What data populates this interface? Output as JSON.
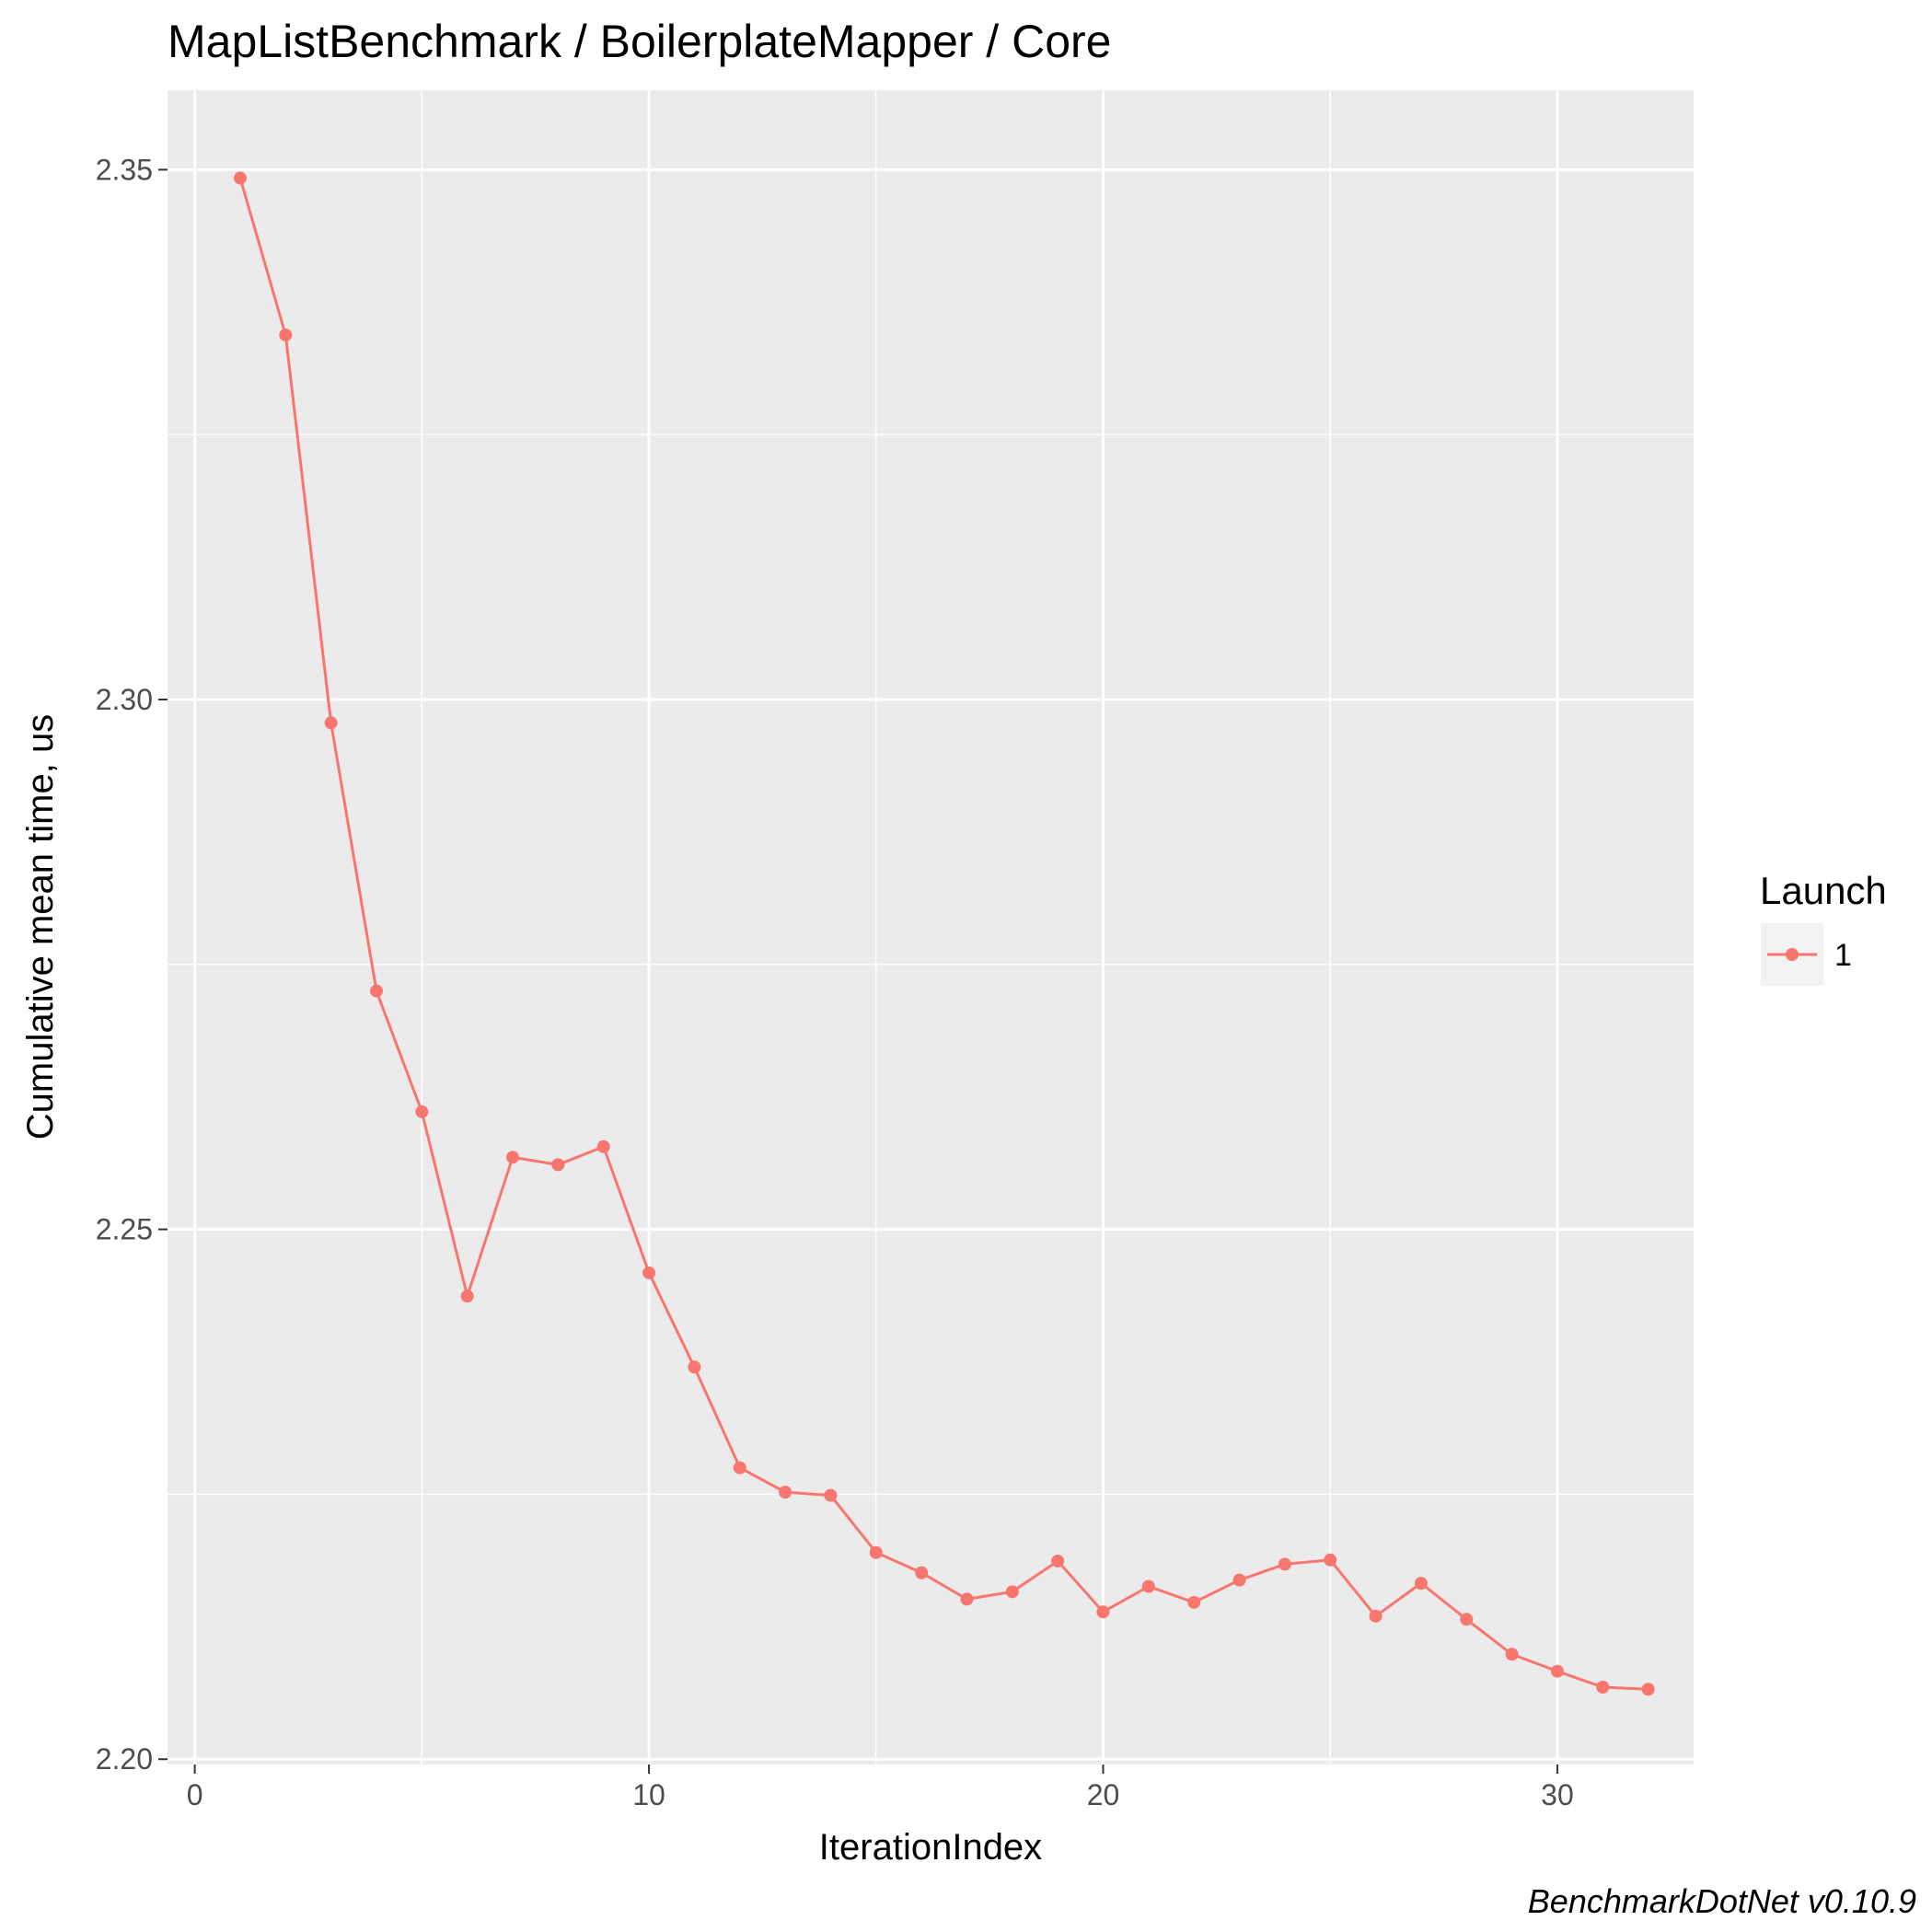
{
  "chart_data": {
    "type": "line",
    "title": "MapListBenchmark / BoilerplateMapper / Core",
    "xlabel": "IterationIndex",
    "ylabel": "Cumulative mean time, us",
    "xlim": [
      -0.6,
      33.0
    ],
    "ylim": [
      2.1995,
      2.3575
    ],
    "x_ticks": [
      0,
      10,
      20,
      30
    ],
    "x_tick_labels": [
      "0",
      "10",
      "20",
      "30"
    ],
    "y_ticks": [
      2.2,
      2.25,
      2.3,
      2.35
    ],
    "y_tick_labels": [
      "2.20",
      "2.25",
      "2.30",
      "2.35"
    ],
    "grid": true,
    "legend": {
      "title": "Launch",
      "position": "right"
    },
    "series": [
      {
        "name": "1",
        "color": "#f8766d",
        "x": [
          1,
          2,
          3,
          4,
          5,
          6,
          7,
          8,
          9,
          10,
          11,
          12,
          13,
          14,
          15,
          16,
          17,
          18,
          19,
          20,
          21,
          22,
          23,
          24,
          25,
          26,
          27,
          28,
          29,
          30,
          31,
          32
        ],
        "y": [
          2.3492,
          2.3344,
          2.2978,
          2.2725,
          2.2611,
          2.2437,
          2.2568,
          2.2561,
          2.2578,
          2.2459,
          2.237,
          2.2275,
          2.2252,
          2.2249,
          2.2195,
          2.2176,
          2.2151,
          2.2158,
          2.2187,
          2.2139,
          2.2163,
          2.2148,
          2.2169,
          2.2184,
          2.2188,
          2.2135,
          2.2166,
          2.2132,
          2.2099,
          2.2083,
          2.2068,
          2.2066
        ]
      }
    ],
    "caption": "BenchmarkDotNet v0.10.9"
  }
}
